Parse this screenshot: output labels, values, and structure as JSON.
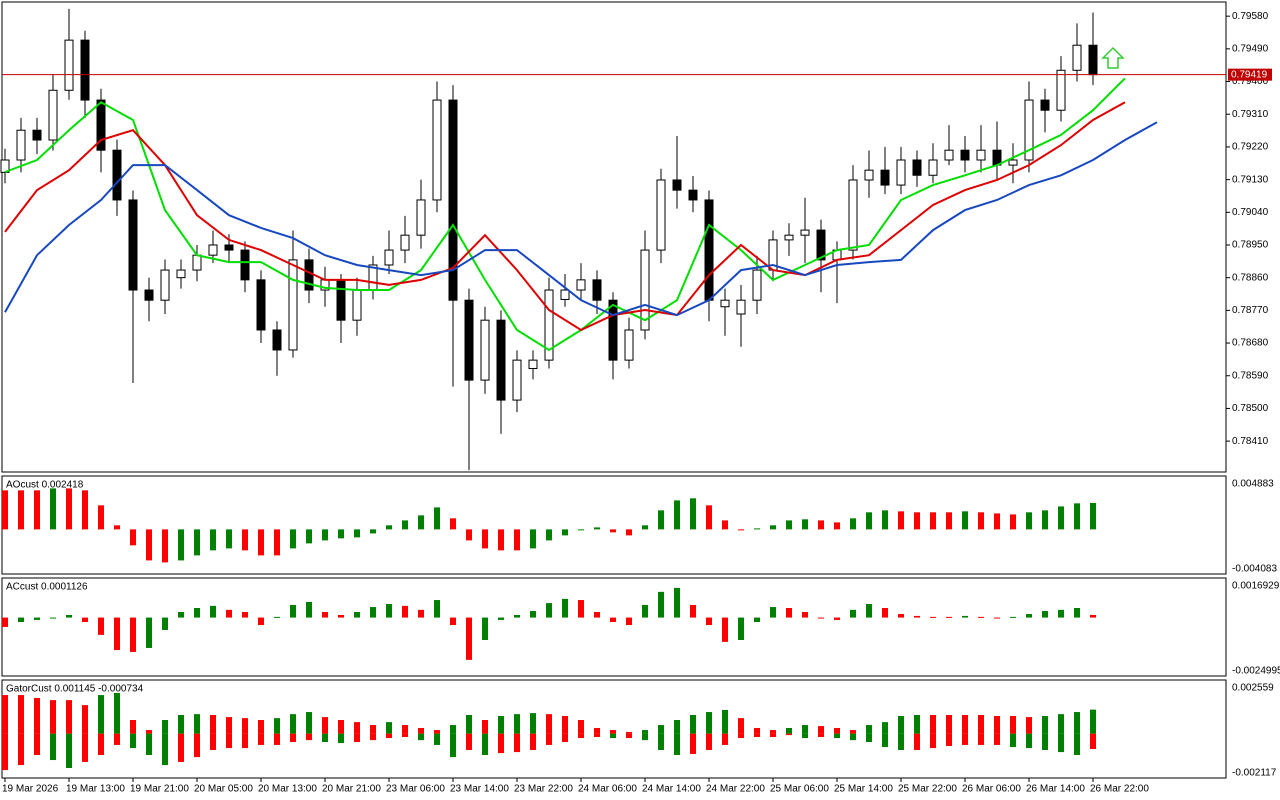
{
  "chart_data": [
    {
      "type": "candlestick",
      "xlim": [
        -0.1875,
        76.3125
      ],
      "ylim": [
        0.78325,
        0.79619
      ],
      "yticks": [
        {
          "value": 0.7958,
          "label": "0.79580"
        },
        {
          "value": 0.7949,
          "label": "0.79490"
        },
        {
          "value": 0.794,
          "label": "0.79400"
        },
        {
          "value": 0.7931,
          "label": "0.79310"
        },
        {
          "value": 0.7922,
          "label": "0.79220"
        },
        {
          "value": 0.7913,
          "label": "0.79130"
        },
        {
          "value": 0.7904,
          "label": "0.79040"
        },
        {
          "value": 0.7895,
          "label": "0.78950"
        },
        {
          "value": 0.7886,
          "label": "0.78860"
        },
        {
          "value": 0.7877,
          "label": "0.78770"
        },
        {
          "value": 0.7868,
          "label": "0.78680"
        },
        {
          "value": 0.7859,
          "label": "0.78590"
        },
        {
          "value": 0.785,
          "label": "0.78500"
        },
        {
          "value": 0.7841,
          "label": "0.78410"
        }
      ],
      "xticks": [
        {
          "value": 0,
          "label": "19 Mar 2026"
        },
        {
          "value": 4,
          "label": "19 Mar 13:00"
        },
        {
          "value": 8,
          "label": "19 Mar 21:00"
        },
        {
          "value": 12,
          "label": "20 Mar 05:00"
        },
        {
          "value": 16,
          "label": "20 Mar 13:00"
        },
        {
          "value": 20,
          "label": "20 Mar 21:00"
        },
        {
          "value": 24,
          "label": "23 Mar 06:00"
        },
        {
          "value": 28,
          "label": "23 Mar 14:00"
        },
        {
          "value": 32,
          "label": "23 Mar 22:00"
        },
        {
          "value": 36,
          "label": "24 Mar 06:00"
        },
        {
          "value": 40,
          "label": "24 Mar 14:00"
        },
        {
          "value": 44,
          "label": "24 Mar 22:00"
        },
        {
          "value": 48,
          "label": "25 Mar 06:00"
        },
        {
          "value": 52,
          "label": "25 Mar 14:00"
        },
        {
          "value": 56,
          "label": "25 Mar 22:00"
        },
        {
          "value": 60,
          "label": "26 Mar 06:00"
        },
        {
          "value": 64,
          "label": "26 Mar 14:00"
        },
        {
          "value": 68,
          "label": "26 Mar 22:00"
        }
      ],
      "current_price": 0.79419,
      "current_price_color": "#c00000",
      "up_color": "#ffffff",
      "down_color": "#000000",
      "candles": [
        [
          0.7915,
          0.79215,
          0.7912,
          0.79184
        ],
        [
          0.79184,
          0.793,
          0.7915,
          0.79266
        ],
        [
          0.79266,
          0.793,
          0.792,
          0.79239
        ],
        [
          0.79239,
          0.7942,
          0.7921,
          0.79376
        ],
        [
          0.79376,
          0.796,
          0.7935,
          0.79514
        ],
        [
          0.79514,
          0.7954,
          0.793,
          0.79349
        ],
        [
          0.79349,
          0.7938,
          0.7915,
          0.79211
        ],
        [
          0.79211,
          0.7924,
          0.7903,
          0.79074
        ],
        [
          0.79074,
          0.791,
          0.7857,
          0.78826
        ],
        [
          0.78826,
          0.7886,
          0.7874,
          0.78798
        ],
        [
          0.78798,
          0.7891,
          0.7876,
          0.78881
        ],
        [
          0.7886,
          0.7891,
          0.7883,
          0.78881
        ],
        [
          0.78881,
          0.7895,
          0.7885,
          0.78922
        ],
        [
          0.78922,
          0.7899,
          0.789,
          0.7895
        ],
        [
          0.7895,
          0.7898,
          0.789,
          0.78936
        ],
        [
          0.78936,
          0.7896,
          0.7882,
          0.78854
        ],
        [
          0.78854,
          0.7888,
          0.7868,
          0.78716
        ],
        [
          0.78716,
          0.7874,
          0.7859,
          0.78661
        ],
        [
          0.78661,
          0.7899,
          0.7864,
          0.78909
        ],
        [
          0.78909,
          0.7894,
          0.7879,
          0.78826
        ],
        [
          0.78826,
          0.7889,
          0.7878,
          0.78854
        ],
        [
          0.78854,
          0.7887,
          0.7868,
          0.78743
        ],
        [
          0.78743,
          0.7886,
          0.787,
          0.78826
        ],
        [
          0.78826,
          0.7892,
          0.788,
          0.78895
        ],
        [
          0.78895,
          0.7899,
          0.7887,
          0.78936
        ],
        [
          0.78936,
          0.7903,
          0.789,
          0.78977
        ],
        [
          0.78977,
          0.7913,
          0.7894,
          0.79074
        ],
        [
          0.79074,
          0.794,
          0.7904,
          0.79349
        ],
        [
          0.79349,
          0.7939,
          0.7856,
          0.78798
        ],
        [
          0.78798,
          0.7883,
          0.7833,
          0.78578
        ],
        [
          0.78578,
          0.7878,
          0.7854,
          0.78743
        ],
        [
          0.78743,
          0.7877,
          0.7843,
          0.78523
        ],
        [
          0.78523,
          0.7866,
          0.7849,
          0.78633
        ],
        [
          0.7861,
          0.7866,
          0.7858,
          0.78633
        ],
        [
          0.78633,
          0.7886,
          0.7861,
          0.78826
        ],
        [
          0.788,
          0.7887,
          0.7878,
          0.78826
        ],
        [
          0.78826,
          0.789,
          0.788,
          0.78854
        ],
        [
          0.78854,
          0.7888,
          0.7876,
          0.78798
        ],
        [
          0.78798,
          0.7882,
          0.7858,
          0.78633
        ],
        [
          0.78633,
          0.7875,
          0.7861,
          0.78716
        ],
        [
          0.78716,
          0.7899,
          0.7869,
          0.78936
        ],
        [
          0.78936,
          0.7916,
          0.789,
          0.79129
        ],
        [
          0.79129,
          0.7925,
          0.7905,
          0.79101
        ],
        [
          0.79101,
          0.7914,
          0.7904,
          0.79074
        ],
        [
          0.79074,
          0.791,
          0.7874,
          0.78798
        ],
        [
          0.7878,
          0.7883,
          0.787,
          0.78798
        ],
        [
          0.7876,
          0.7884,
          0.7867,
          0.78798
        ],
        [
          0.78798,
          0.7892,
          0.7876,
          0.78881
        ],
        [
          0.78881,
          0.7899,
          0.7885,
          0.78964
        ],
        [
          0.78964,
          0.7901,
          0.7892,
          0.78977
        ],
        [
          0.78977,
          0.7908,
          0.789,
          0.78991
        ],
        [
          0.78991,
          0.7902,
          0.7882,
          0.78909
        ],
        [
          0.78909,
          0.7896,
          0.7879,
          0.78936
        ],
        [
          0.78936,
          0.7917,
          0.7891,
          0.79129
        ],
        [
          0.79129,
          0.7921,
          0.7908,
          0.79156
        ],
        [
          0.79156,
          0.7922,
          0.7909,
          0.79115
        ],
        [
          0.79115,
          0.7922,
          0.7909,
          0.79184
        ],
        [
          0.79184,
          0.7921,
          0.7911,
          0.79142
        ],
        [
          0.79142,
          0.7923,
          0.7912,
          0.79184
        ],
        [
          0.79184,
          0.7928,
          0.7917,
          0.79211
        ],
        [
          0.79211,
          0.7925,
          0.7915,
          0.79184
        ],
        [
          0.79184,
          0.7928,
          0.7915,
          0.79211
        ],
        [
          0.79211,
          0.7929,
          0.7913,
          0.7917
        ],
        [
          0.7917,
          0.7923,
          0.7912,
          0.79184
        ],
        [
          0.79184,
          0.794,
          0.7915,
          0.79349
        ],
        [
          0.79349,
          0.7938,
          0.7926,
          0.79321
        ],
        [
          0.79321,
          0.7947,
          0.7929,
          0.79431
        ],
        [
          0.79431,
          0.7956,
          0.794,
          0.795
        ],
        [
          0.795,
          0.7959,
          0.7939,
          0.79419
        ]
      ],
      "lines": [
        {
          "color": "#00dd00",
          "x": [
            0,
            2,
            4,
            6,
            8,
            10,
            12,
            14,
            16,
            18,
            20,
            22,
            24,
            26,
            28,
            30,
            32,
            34,
            36,
            38,
            40,
            42,
            44,
            46,
            48,
            50,
            52,
            54,
            56,
            58,
            60,
            62,
            64,
            66,
            68,
            70
          ],
          "values": [
            0.79151,
            0.79184,
            0.79266,
            0.79343,
            0.79294,
            0.79046,
            0.78922,
            0.78903,
            0.78903,
            0.78854,
            0.78832,
            0.78826,
            0.78826,
            0.78881,
            0.79005,
            0.78854,
            0.78716,
            0.78661,
            0.78716,
            0.78785,
            0.78743,
            0.78798,
            0.79005,
            0.78936,
            0.78854,
            0.78895,
            0.78936,
            0.7895,
            0.79074,
            0.79115,
            0.79142,
            0.7917,
            0.79211,
            0.79253,
            0.79321,
            0.79409
          ]
        },
        {
          "color": "#dd0000",
          "x": [
            0,
            2,
            4,
            6,
            8,
            10,
            12,
            14,
            16,
            18,
            20,
            22,
            24,
            26,
            28,
            30,
            32,
            34,
            36,
            38,
            40,
            42,
            44,
            46,
            48,
            50,
            52,
            54,
            56,
            58,
            60,
            62,
            64,
            66,
            68,
            70
          ],
          "values": [
            0.78986,
            0.79101,
            0.79156,
            0.79239,
            0.79266,
            0.7917,
            0.79032,
            0.78964,
            0.78936,
            0.78895,
            0.78854,
            0.78854,
            0.7884,
            0.78854,
            0.78887,
            0.78977,
            0.78881,
            0.78771,
            0.78716,
            0.78757,
            0.78771,
            0.78757,
            0.78867,
            0.7895,
            0.78881,
            0.78867,
            0.78909,
            0.78922,
            0.78991,
            0.7906,
            0.79101,
            0.79129,
            0.7917,
            0.79225,
            0.79294,
            0.79343
          ]
        },
        {
          "color": "#1848c0",
          "x": [
            0,
            2,
            4,
            6,
            8,
            10,
            12,
            14,
            16,
            18,
            20,
            22,
            24,
            26,
            28,
            30,
            32,
            34,
            36,
            38,
            40,
            42,
            44,
            46,
            48,
            50,
            52,
            54,
            56,
            58,
            60,
            62,
            64,
            66,
            68,
            70,
            72
          ],
          "values": [
            0.78765,
            0.78922,
            0.79005,
            0.79074,
            0.7917,
            0.7917,
            0.79101,
            0.79032,
            0.78997,
            0.78969,
            0.78922,
            0.78895,
            0.78881,
            0.78867,
            0.78881,
            0.78936,
            0.78936,
            0.78867,
            0.78798,
            0.78757,
            0.78785,
            0.78757,
            0.78798,
            0.78881,
            0.78895,
            0.78867,
            0.78895,
            0.78903,
            0.78909,
            0.78991,
            0.79046,
            0.79074,
            0.79115,
            0.79142,
            0.79184,
            0.79239,
            0.79288
          ]
        }
      ]
    },
    {
      "type": "histogram",
      "title": "AOcust 0.002418",
      "ylim": [
        -0.004083,
        0.004883
      ],
      "up_color": "#008000",
      "down_color": "#ff0000",
      "values": [
        0.00357,
        0.00357,
        0.00357,
        0.00375,
        0.00375,
        0.00357,
        0.0022,
        0.00037,
        -0.00146,
        -0.00284,
        -0.00302,
        -0.00284,
        -0.00238,
        -0.00192,
        -0.00174,
        -0.00192,
        -0.00238,
        -0.00238,
        -0.00174,
        -0.00128,
        -0.00101,
        -0.00082,
        -0.00073,
        -0.00037,
        0.00037,
        0.00082,
        0.00128,
        0.00201,
        0.00101,
        -0.00101,
        -0.00174,
        -0.00192,
        -0.00192,
        -0.00174,
        -0.00101,
        -0.00055,
        -9e-05,
        0.00018,
        -0.00027,
        -0.00055,
        0.00037,
        0.00174,
        0.00265,
        0.00284,
        0.0022,
        0.00082,
        -9e-05,
        9e-05,
        0.00037,
        0.00082,
        0.00092,
        0.00082,
        0.00064,
        0.00101,
        0.00156,
        0.00174,
        0.00165,
        0.00156,
        0.00156,
        0.00156,
        0.00165,
        0.00156,
        0.00146,
        0.00137,
        0.00156,
        0.00174,
        0.0021,
        0.00238,
        0.002418
      ]
    },
    {
      "type": "histogram",
      "title": "ACcust 0.0001126",
      "ylim": [
        -0.0024995,
        0.0016929
      ],
      "up_color": "#008000",
      "down_color": "#ff0000",
      "values": [
        -0.0004,
        -0.00019,
        -0.0001,
        -2e-05,
        0.00011,
        -0.00019,
        -0.00074,
        -0.00139,
        -0.00147,
        -0.0013,
        -0.00053,
        0.00024,
        0.00041,
        0.0005,
        0.00033,
        0.00024,
        -0.00032,
        3e-05,
        0.00054,
        0.00067,
        0.00024,
        0.00011,
        0.00024,
        0.00045,
        0.00058,
        0.0005,
        0.00033,
        0.00075,
        -0.00032,
        -0.00181,
        -0.00096,
        -0.0001,
        0.00011,
        0.00028,
        0.00062,
        0.0008,
        0.00075,
        0.00024,
        -0.00019,
        -0.00032,
        0.00054,
        0.0011,
        0.00127,
        0.00054,
        -0.00032,
        -0.00104,
        -0.00096,
        -0.00019,
        0.00045,
        0.00041,
        0.00024,
        -2e-05,
        -0.0001,
        0.00033,
        0.00058,
        0.00041,
        0.00015,
        7e-05,
        3e-05,
        3e-05,
        7e-05,
        3e-05,
        -2e-05,
        3e-05,
        0.00015,
        0.00028,
        0.00033,
        0.00041,
        0.0001126
      ]
    },
    {
      "type": "gator",
      "title": "GatorCust 0.001145 -0.000734",
      "ylim": [
        -0.002117,
        0.002559
      ],
      "up_color": "#008000",
      "down_color": "#ff0000",
      "upper": [
        0.00184,
        0.00184,
        0.0017,
        0.0016,
        0.0016,
        0.00136,
        0.00184,
        0.00194,
        0.00065,
        0.00017,
        0.00065,
        0.00089,
        0.00093,
        0.00089,
        0.00079,
        0.00074,
        0.00065,
        0.00074,
        0.00093,
        0.00103,
        0.00079,
        0.00065,
        0.00055,
        0.00041,
        0.00055,
        0.00041,
        0.00027,
        0.00017,
        0.00041,
        0.00089,
        0.00065,
        0.00084,
        0.00093,
        0.00098,
        0.00093,
        0.00084,
        0.00065,
        0.00027,
        0.00017,
        8e-05,
        0.00017,
        0.00041,
        0.00065,
        0.00089,
        0.00103,
        0.00113,
        0.00074,
        0.00027,
        0.00017,
        0.00027,
        0.00041,
        0.00036,
        0.00027,
        0.00017,
        0.00041,
        0.00055,
        0.00084,
        0.00089,
        0.00089,
        0.00089,
        0.00089,
        0.00089,
        0.00084,
        0.00084,
        0.00079,
        0.00084,
        0.00093,
        0.00103,
        0.001145
      ],
      "lower": [
        -0.00174,
        -0.0015,
        -0.00102,
        -0.00126,
        -0.00164,
        -0.00135,
        -0.00102,
        -0.00054,
        -0.00069,
        -0.00102,
        -0.0015,
        -0.00135,
        -0.00112,
        -0.00078,
        -0.00069,
        -0.00069,
        -0.00054,
        -0.00054,
        -0.0004,
        -0.00031,
        -0.0004,
        -0.00045,
        -0.0004,
        -0.00031,
        -0.00021,
        -0.00016,
        -0.00031,
        -0.00054,
        -0.00112,
        -0.00078,
        -0.00102,
        -0.00093,
        -0.00088,
        -0.00078,
        -0.00054,
        -0.0004,
        -0.00021,
        -0.00016,
        -0.00021,
        -0.00021,
        -0.00031,
        -0.00078,
        -0.00102,
        -0.00097,
        -0.00078,
        -0.00054,
        -0.00021,
        -0.00016,
        -0.00016,
        -7e-05,
        -0.00021,
        -0.00016,
        -0.00021,
        -0.00031,
        -0.0004,
        -0.00064,
        -0.00078,
        -0.00078,
        -0.00069,
        -0.00059,
        -0.00054,
        -0.00054,
        -0.00054,
        -0.00064,
        -0.00069,
        -0.00078,
        -0.00088,
        -0.00102,
        -0.000734
      ]
    }
  ]
}
